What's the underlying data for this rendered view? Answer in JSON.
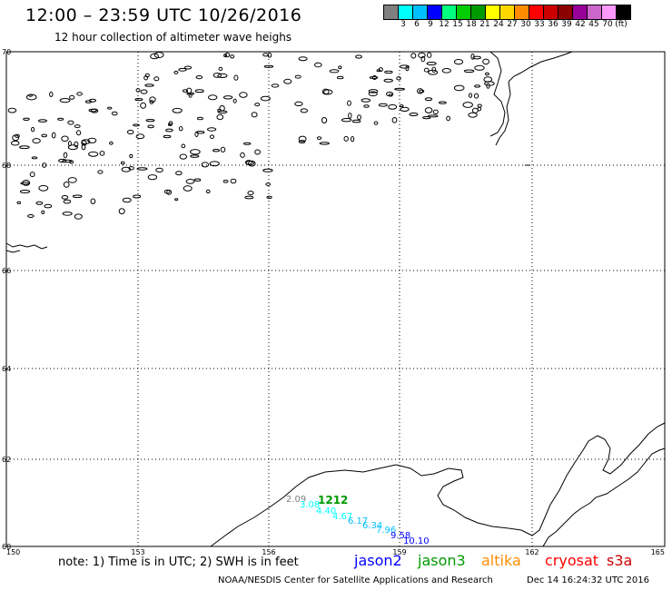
{
  "header": {
    "title": "12:00 – 23:59 UTC 10/26/2016",
    "subtitle": "12 hour collection of altimeter wave heighs"
  },
  "legend": {
    "colors": [
      "#808080",
      "#00ffff",
      "#00bfff",
      "#0000ff",
      "#00ff7f",
      "#00cc00",
      "#009900",
      "#ffff00",
      "#ffd700",
      "#ff8c00",
      "#ff0000",
      "#cc0000",
      "#8b0000",
      "#990099",
      "#cc66cc",
      "#ff99ff",
      "#000000"
    ],
    "labels": [
      "3",
      "6",
      "9",
      "12",
      "15",
      "18",
      "21",
      "24",
      "27",
      "30",
      "33",
      "36",
      "39",
      "42",
      "45",
      "70",
      "(ft)"
    ]
  },
  "map": {
    "lat_labels": [
      "70",
      "68",
      "66",
      "64",
      "62",
      "60"
    ],
    "lon_labels": [
      "150",
      "153",
      "156",
      "159",
      "162",
      "165"
    ],
    "pass_label": {
      "text": "1212",
      "color": "#009900"
    },
    "swh_points": [
      {
        "text": "2.09",
        "color": "#808080"
      },
      {
        "text": "3.08",
        "color": "#00ffff"
      },
      {
        "text": "4.40",
        "color": "#00ffff"
      },
      {
        "text": "4.67",
        "color": "#00ffff"
      },
      {
        "text": "6.17",
        "color": "#00bfff"
      },
      {
        "text": "6.34",
        "color": "#00bfff"
      },
      {
        "text": "7.96",
        "color": "#00bfff"
      },
      {
        "text": "9.58",
        "color": "#0000ff"
      },
      {
        "text": "10.10",
        "color": "#0000ff"
      }
    ]
  },
  "footer": {
    "note": "note: 1) Time is in UTC; 2) SWH is in feet",
    "satellites": [
      {
        "name": "jason2",
        "color": "#0000ff"
      },
      {
        "name": "jason3",
        "color": "#009900"
      },
      {
        "name": "altika",
        "color": "#ff8c00"
      },
      {
        "name": "cryosat",
        "color": "#ff0000"
      },
      {
        "name": "s3a",
        "color": "#cc0000"
      }
    ],
    "credit": "NOAA/NESDIS Center for Satellite Applications and Research",
    "timestamp": "Dec 14 16:24:32 UTC 2016"
  }
}
